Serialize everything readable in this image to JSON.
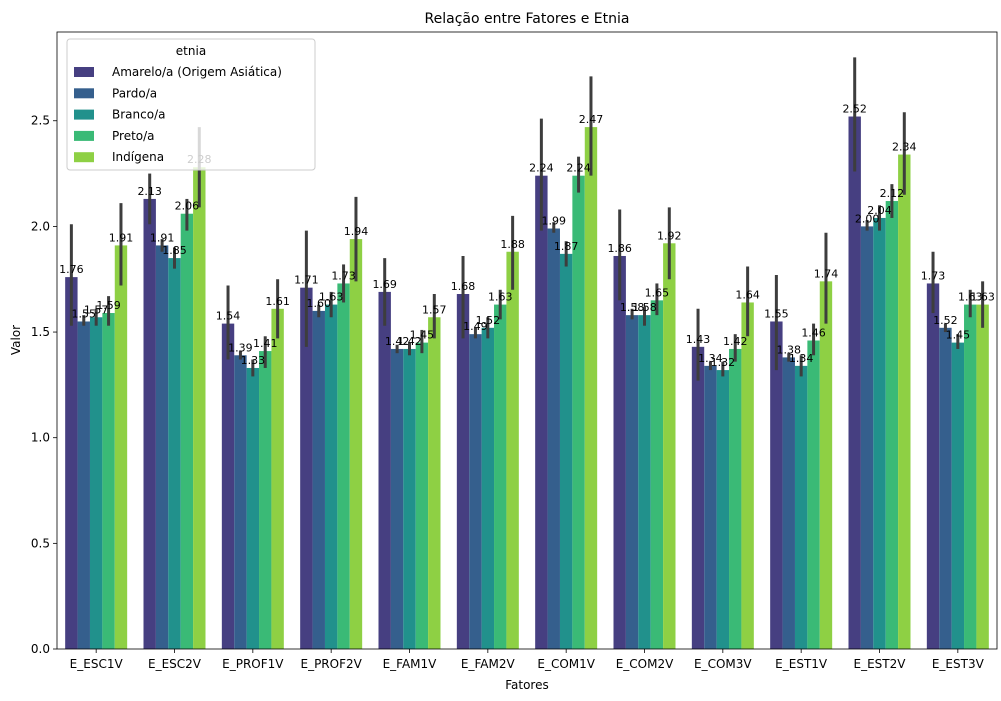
{
  "chart_data": {
    "type": "bar",
    "title": "Relação entre Fatores e Etnia",
    "xlabel": "Fatores",
    "ylabel": "Valor",
    "ylim": [
      0,
      2.92
    ],
    "yticks": [
      "0.0",
      "0.5",
      "1.0",
      "1.5",
      "2.0",
      "2.5"
    ],
    "grid": false,
    "legend": {
      "title": "etnia",
      "position": "top-left"
    },
    "categories": [
      "E_ESC1V",
      "E_ESC2V",
      "E_PROF1V",
      "E_PROF2V",
      "E_FAM1V",
      "E_FAM2V",
      "E_COM1V",
      "E_COM2V",
      "E_COM3V",
      "E_EST1V",
      "E_EST2V",
      "E_EST3V"
    ],
    "series": [
      {
        "name": "Amarelo/a (Origem Asiática)",
        "color": "#463f81",
        "values": [
          1.76,
          2.13,
          1.54,
          1.71,
          1.69,
          1.68,
          2.24,
          1.86,
          1.43,
          1.55,
          2.52,
          1.73
        ],
        "ci_low": [
          1.53,
          2.01,
          1.37,
          1.43,
          1.53,
          1.47,
          1.98,
          1.65,
          1.27,
          1.32,
          2.26,
          1.59
        ],
        "ci_high": [
          2.01,
          2.25,
          1.72,
          1.98,
          1.85,
          1.86,
          2.51,
          2.08,
          1.61,
          1.77,
          2.8,
          1.88
        ]
      },
      {
        "name": "Pardo/a",
        "color": "#355f8d",
        "values": [
          1.55,
          1.91,
          1.39,
          1.6,
          1.42,
          1.49,
          1.99,
          1.58,
          1.34,
          1.38,
          2.0,
          1.52
        ],
        "ci_low": [
          1.53,
          1.88,
          1.37,
          1.57,
          1.4,
          1.47,
          1.97,
          1.56,
          1.32,
          1.36,
          1.98,
          1.5
        ],
        "ci_high": [
          1.58,
          1.94,
          1.41,
          1.63,
          1.44,
          1.52,
          2.02,
          1.61,
          1.36,
          1.4,
          2.03,
          1.54
        ]
      },
      {
        "name": "Branco/a",
        "color": "#21918c",
        "values": [
          1.57,
          1.85,
          1.33,
          1.63,
          1.42,
          1.52,
          1.87,
          1.58,
          1.32,
          1.34,
          2.04,
          1.45
        ],
        "ci_low": [
          1.53,
          1.8,
          1.29,
          1.57,
          1.39,
          1.47,
          1.81,
          1.53,
          1.29,
          1.29,
          1.98,
          1.42
        ],
        "ci_high": [
          1.61,
          1.9,
          1.37,
          1.69,
          1.45,
          1.57,
          1.93,
          1.62,
          1.36,
          1.39,
          2.1,
          1.49
        ]
      },
      {
        "name": "Preto/a",
        "color": "#3aba76",
        "values": [
          1.59,
          2.06,
          1.41,
          1.73,
          1.45,
          1.63,
          2.24,
          1.65,
          1.42,
          1.46,
          2.12,
          1.63
        ],
        "ci_low": [
          1.53,
          1.98,
          1.33,
          1.64,
          1.4,
          1.56,
          2.16,
          1.58,
          1.36,
          1.39,
          2.04,
          1.57
        ],
        "ci_high": [
          1.67,
          2.13,
          1.48,
          1.82,
          1.51,
          1.7,
          2.33,
          1.73,
          1.49,
          1.54,
          2.2,
          1.7
        ]
      },
      {
        "name": "Indígena",
        "color": "#8ed044",
        "values": [
          1.91,
          2.28,
          1.61,
          1.94,
          1.57,
          1.88,
          2.47,
          1.92,
          1.64,
          1.74,
          2.34,
          1.63
        ],
        "ci_low": [
          1.72,
          2.09,
          1.47,
          1.74,
          1.47,
          1.7,
          2.24,
          1.75,
          1.48,
          1.54,
          2.15,
          1.52
        ],
        "ci_high": [
          2.11,
          2.47,
          1.75,
          2.14,
          1.68,
          2.05,
          2.71,
          2.09,
          1.81,
          1.97,
          2.54,
          1.74
        ]
      }
    ]
  }
}
